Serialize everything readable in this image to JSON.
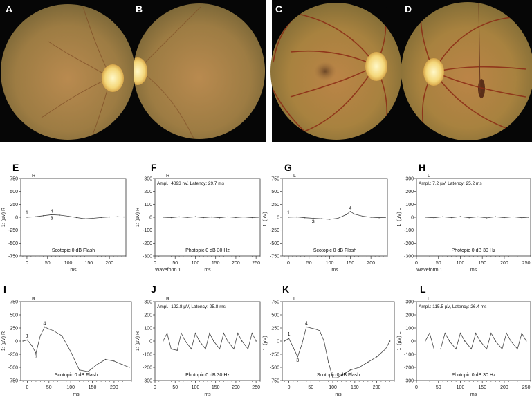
{
  "fundus_panels": [
    {
      "letter": "A",
      "eye": "right"
    },
    {
      "letter": "B",
      "eye": "left"
    },
    {
      "letter": "C",
      "eye": "right"
    },
    {
      "letter": "D",
      "eye": "left"
    }
  ],
  "erg_panels": [
    {
      "letter": "E",
      "eye_tag": "R",
      "ylabel": "1: (µV) R",
      "xlabel": "ms",
      "yticks": [
        750,
        500,
        250,
        0,
        -250,
        -500,
        -750
      ],
      "xticks": [
        0,
        50,
        100,
        150,
        200
      ],
      "stimulus": "Scotopic 0 dB Flash",
      "ampl": "",
      "waveform": "",
      "markers": [
        "1",
        "3",
        "4"
      ],
      "chart_data": {
        "type": "line",
        "ylim": [
          -750,
          750
        ],
        "xlim": [
          -15,
          240
        ],
        "x": [
          0,
          20,
          40,
          60,
          80,
          100,
          120,
          140,
          160,
          180,
          200,
          220,
          235
        ],
        "y": [
          0,
          10,
          30,
          50,
          40,
          20,
          -5,
          -30,
          -20,
          -5,
          5,
          10,
          5
        ]
      }
    },
    {
      "letter": "F",
      "eye_tag": "R",
      "ylabel": "1: (µV) R",
      "xlabel": "ms",
      "yticks": [
        300,
        200,
        100,
        0,
        -100,
        -200,
        -300
      ],
      "xticks": [
        0,
        50,
        100,
        150,
        200,
        250
      ],
      "stimulus": "Photopic 0 dB 30 Hz",
      "ampl": "Ampl.: 4893 nV, Latency: 29.7 ms",
      "waveform": "Waveform 1",
      "markers": [],
      "chart_data": {
        "type": "line",
        "ylim": [
          -300,
          300
        ],
        "xlim": [
          0,
          260
        ],
        "x": [
          20,
          40,
          60,
          80,
          100,
          120,
          140,
          160,
          180,
          200,
          220,
          240,
          255
        ],
        "y": [
          0,
          -3,
          3,
          -2,
          4,
          -3,
          2,
          -4,
          3,
          -2,
          2,
          -3,
          0
        ]
      }
    },
    {
      "letter": "G",
      "eye_tag": "L",
      "ylabel": "1: (µV) L",
      "xlabel": "ms",
      "yticks": [
        750,
        500,
        250,
        0,
        -250,
        -500,
        -750
      ],
      "xticks": [
        0,
        50,
        100,
        150,
        200
      ],
      "stimulus": "Scotopic 0 dB Flash",
      "ampl": "",
      "waveform": "",
      "markers": [
        "1",
        "3",
        "4"
      ],
      "chart_data": {
        "type": "line",
        "ylim": [
          -750,
          750
        ],
        "xlim": [
          -15,
          240
        ],
        "x": [
          0,
          20,
          40,
          60,
          80,
          100,
          120,
          140,
          150,
          160,
          180,
          200,
          220,
          235
        ],
        "y": [
          0,
          5,
          -10,
          -20,
          -30,
          -40,
          -20,
          50,
          110,
          60,
          20,
          0,
          -10,
          -5
        ]
      }
    },
    {
      "letter": "H",
      "eye_tag": "L",
      "ylabel": "1: (µV) L",
      "xlabel": "ms",
      "yticks": [
        300,
        200,
        100,
        0,
        -100,
        -200,
        -300
      ],
      "xticks": [
        0,
        50,
        100,
        150,
        200,
        250
      ],
      "stimulus": "Photopic 0 dB 30 Hz",
      "ampl": "Ampl.: 7.2 µV, Latency: 25.2 ms",
      "waveform": "Waveform 1",
      "markers": [],
      "chart_data": {
        "type": "line",
        "ylim": [
          -300,
          300
        ],
        "xlim": [
          0,
          260
        ],
        "x": [
          20,
          40,
          60,
          80,
          100,
          120,
          140,
          160,
          180,
          200,
          220,
          240,
          255
        ],
        "y": [
          0,
          -4,
          4,
          -3,
          5,
          -4,
          3,
          -5,
          4,
          -3,
          3,
          -4,
          0
        ]
      }
    },
    {
      "letter": "I",
      "eye_tag": "R",
      "ylabel": "1: (µV) R",
      "xlabel": "ms",
      "yticks": [
        750,
        500,
        250,
        0,
        -250,
        -500,
        -750
      ],
      "xticks": [
        0,
        50,
        100,
        150,
        200
      ],
      "stimulus": "Scotopic 0 dB Flash",
      "ampl": "",
      "waveform": "",
      "markers": [
        "1",
        "3",
        "4"
      ],
      "chart_data": {
        "type": "line",
        "ylim": [
          -750,
          750
        ],
        "xlim": [
          -15,
          240
        ],
        "x": [
          -10,
          0,
          10,
          20,
          30,
          40,
          50,
          60,
          80,
          100,
          120,
          140,
          160,
          180,
          200,
          220,
          235
        ],
        "y": [
          0,
          20,
          -80,
          -230,
          100,
          270,
          230,
          200,
          100,
          -200,
          -550,
          -580,
          -450,
          -350,
          -380,
          -450,
          -500
        ]
      }
    },
    {
      "letter": "J",
      "eye_tag": "R",
      "ylabel": "1: (µV) R",
      "xlabel": "ms",
      "yticks": [
        300,
        200,
        100,
        0,
        -100,
        -200,
        -300
      ],
      "xticks": [
        0,
        50,
        100,
        150,
        200,
        250
      ],
      "stimulus": "Photopic 0 dB 30 Hz",
      "ampl": "Ampl.: 122.8 µV, Latency: 25.8 ms",
      "waveform": "",
      "markers": [],
      "chart_data": {
        "type": "line",
        "ylim": [
          -300,
          300
        ],
        "xlim": [
          0,
          260
        ],
        "x": [
          20,
          30,
          40,
          55,
          65,
          75,
          90,
          100,
          110,
          125,
          135,
          145,
          160,
          170,
          180,
          195,
          205,
          215,
          230,
          240,
          250
        ],
        "y": [
          0,
          60,
          -60,
          -70,
          60,
          0,
          -60,
          60,
          0,
          -60,
          60,
          0,
          -60,
          60,
          0,
          -60,
          60,
          0,
          -60,
          60,
          0
        ]
      }
    },
    {
      "letter": "K",
      "eye_tag": "L",
      "ylabel": "1: (µV) L",
      "xlabel": "ms",
      "yticks": [
        750,
        500,
        250,
        0,
        -250,
        -500,
        -750
      ],
      "xticks": [
        0,
        50,
        100,
        150,
        200
      ],
      "stimulus": "Scotopic 0 dB Flash",
      "ampl": "",
      "waveform": "",
      "markers": [
        "1",
        "3",
        "4"
      ],
      "chart_data": {
        "type": "line",
        "ylim": [
          -750,
          750
        ],
        "xlim": [
          -15,
          240
        ],
        "x": [
          -10,
          0,
          10,
          20,
          30,
          40,
          50,
          60,
          70,
          80,
          90,
          100,
          110,
          120,
          140,
          160,
          180,
          200,
          220,
          230
        ],
        "y": [
          0,
          50,
          -120,
          -300,
          -50,
          270,
          250,
          230,
          200,
          0,
          -400,
          -700,
          -700,
          -650,
          -550,
          -500,
          -400,
          -300,
          -150,
          0
        ]
      }
    },
    {
      "letter": "L",
      "eye_tag": "L",
      "ylabel": "1: (µV) L",
      "xlabel": "ms",
      "yticks": [
        300,
        200,
        100,
        0,
        -100,
        -200,
        -300
      ],
      "xticks": [
        0,
        50,
        100,
        150,
        200,
        250
      ],
      "stimulus": "Photopic 0 dB 30 Hz",
      "ampl": "Ampl.: 115.5 µV, Latency: 26.4 ms",
      "waveform": "",
      "markers": [],
      "chart_data": {
        "type": "line",
        "ylim": [
          -300,
          300
        ],
        "xlim": [
          0,
          260
        ],
        "x": [
          20,
          30,
          40,
          55,
          65,
          75,
          90,
          100,
          110,
          125,
          135,
          145,
          160,
          170,
          180,
          195,
          205,
          215,
          230,
          240,
          250
        ],
        "y": [
          0,
          60,
          -60,
          -60,
          60,
          0,
          -60,
          60,
          0,
          -60,
          60,
          0,
          -60,
          60,
          0,
          -60,
          60,
          0,
          -60,
          60,
          0
        ]
      }
    }
  ]
}
